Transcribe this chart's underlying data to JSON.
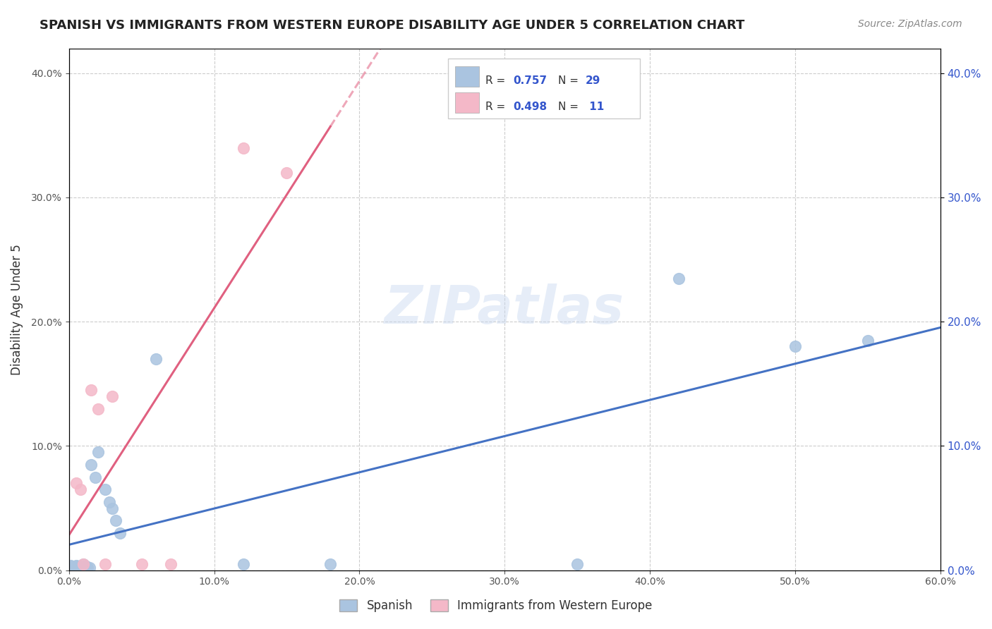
{
  "title": "SPANISH VS IMMIGRANTS FROM WESTERN EUROPE DISABILITY AGE UNDER 5 CORRELATION CHART",
  "source": "Source: ZipAtlas.com",
  "ylabel": "Disability Age Under 5",
  "legend_r": [
    0.757,
    0.498
  ],
  "legend_n": [
    29,
    11
  ],
  "blue_color": "#aac4e0",
  "pink_color": "#f4b8c8",
  "blue_line_color": "#4472c4",
  "pink_line_color": "#e06080",
  "xlim": [
    0.0,
    0.6
  ],
  "ylim": [
    0.0,
    0.42
  ],
  "xticks": [
    0.0,
    0.1,
    0.2,
    0.3,
    0.4,
    0.5,
    0.6
  ],
  "yticks": [
    0.0,
    0.1,
    0.2,
    0.3,
    0.4
  ],
  "spanish_x": [
    0.001,
    0.002,
    0.003,
    0.004,
    0.005,
    0.006,
    0.007,
    0.008,
    0.009,
    0.01,
    0.011,
    0.012,
    0.013,
    0.014,
    0.015,
    0.018,
    0.02,
    0.025,
    0.028,
    0.03,
    0.032,
    0.035,
    0.06,
    0.12,
    0.18,
    0.35,
    0.42,
    0.5,
    0.55
  ],
  "spanish_y": [
    0.004,
    0.003,
    0.002,
    0.003,
    0.004,
    0.003,
    0.003,
    0.002,
    0.002,
    0.005,
    0.003,
    0.003,
    0.002,
    0.002,
    0.085,
    0.075,
    0.095,
    0.065,
    0.055,
    0.05,
    0.04,
    0.03,
    0.17,
    0.005,
    0.005,
    0.005,
    0.235,
    0.18,
    0.185
  ],
  "imm_x": [
    0.005,
    0.008,
    0.01,
    0.015,
    0.02,
    0.025,
    0.03,
    0.05,
    0.07,
    0.12,
    0.15
  ],
  "imm_y": [
    0.07,
    0.065,
    0.005,
    0.145,
    0.13,
    0.005,
    0.14,
    0.005,
    0.005,
    0.34,
    0.32
  ],
  "background_color": "#ffffff",
  "grid_color": "#cccccc"
}
